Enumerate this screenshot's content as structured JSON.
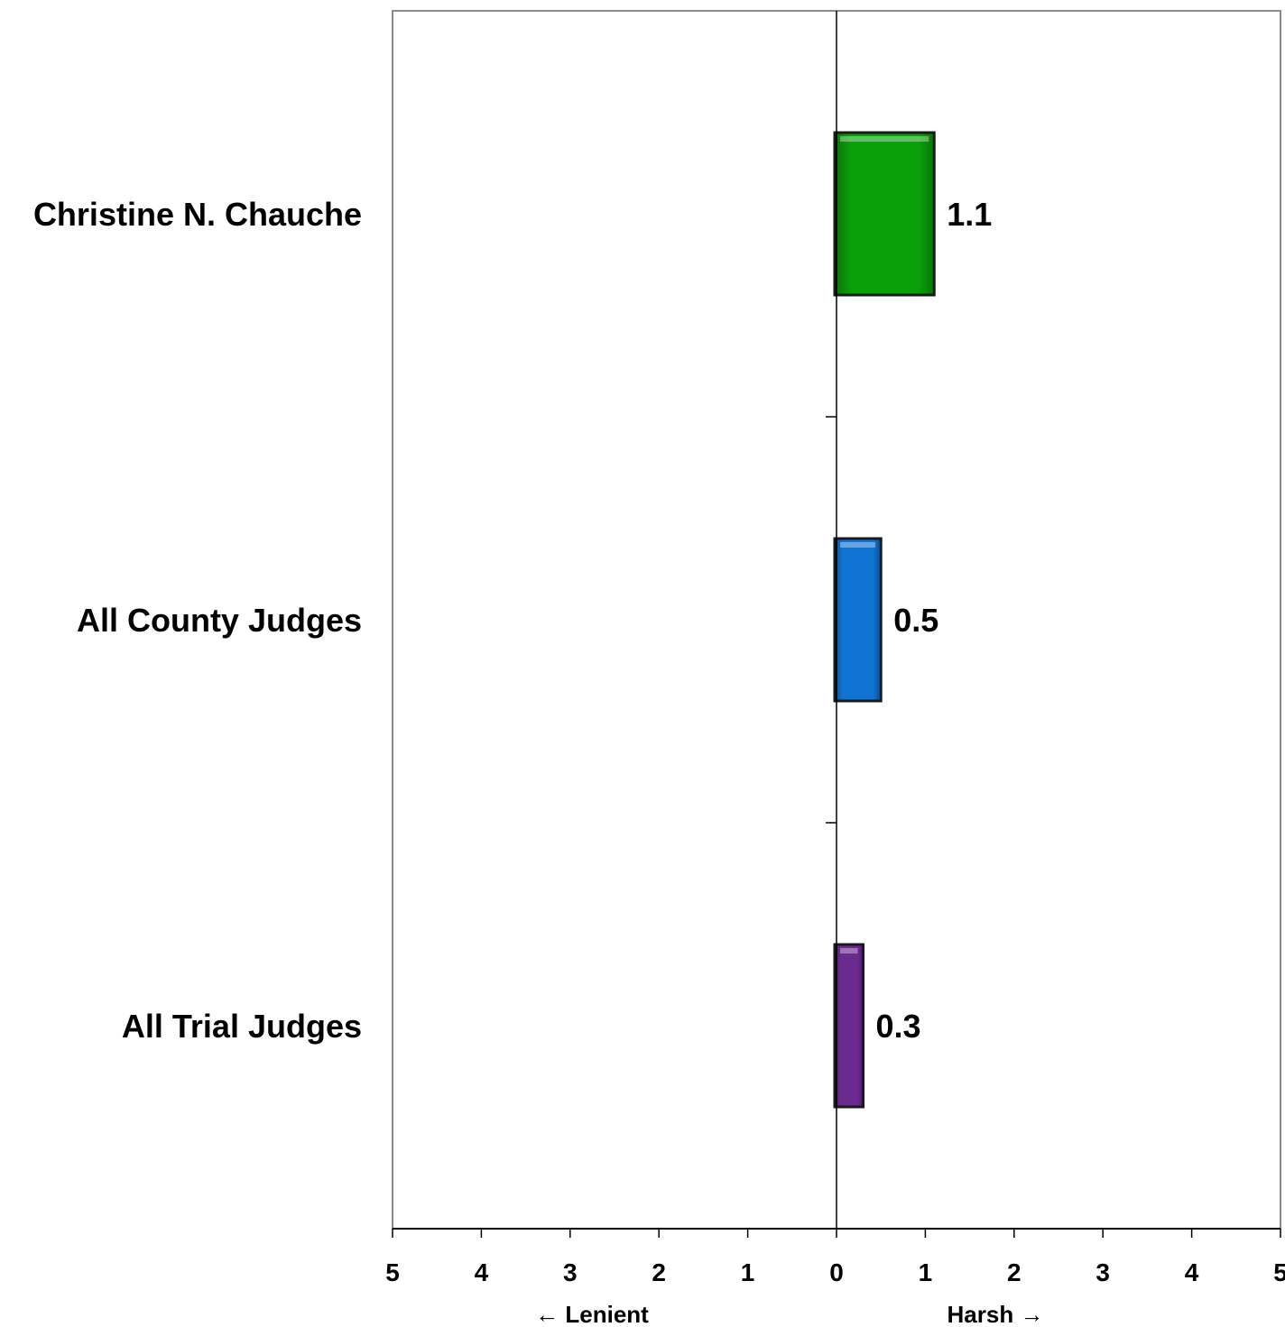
{
  "chart_data": {
    "type": "bar",
    "orientation": "horizontal",
    "categories": [
      "Christine N. Chauche",
      "All County Judges",
      "All Trial Judges"
    ],
    "values": [
      1.1,
      0.5,
      0.3
    ],
    "value_labels": [
      "1.1",
      "0.5",
      "0.3"
    ],
    "colors": [
      "#0aa00a",
      "#1173d4",
      "#6a2a90"
    ],
    "xlim": [
      -5,
      5
    ],
    "x_tick_values": [
      -5,
      -4,
      -3,
      -2,
      -1,
      0,
      1,
      2,
      3,
      4,
      5
    ],
    "x_tick_labels": [
      "5",
      "4",
      "3",
      "2",
      "1",
      "0",
      "1",
      "2",
      "3",
      "4",
      "5"
    ],
    "left_direction_label": "← Lenient",
    "right_direction_label": "Harsh →",
    "grid": false,
    "legend": "none"
  }
}
